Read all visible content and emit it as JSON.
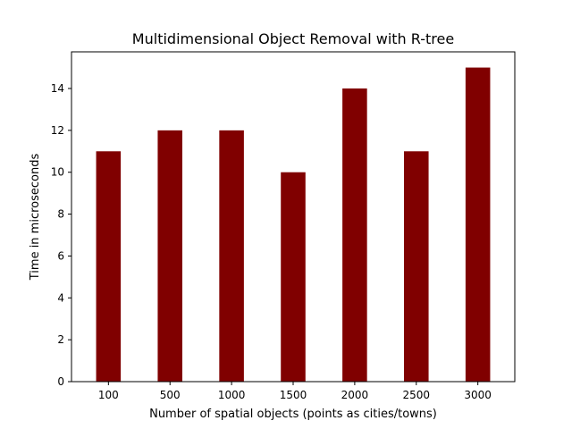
{
  "chart_data": {
    "type": "bar",
    "title": "Multidimensional Object Removal with R-tree",
    "xlabel": "Number of spatial objects (points as cities/towns)",
    "ylabel": "Time in microseconds",
    "categories": [
      "100",
      "500",
      "1000",
      "1500",
      "2000",
      "2500",
      "3000"
    ],
    "values": [
      11,
      12,
      12,
      10,
      14,
      11,
      15
    ],
    "ylim": [
      0,
      15.75
    ],
    "yticks": [
      0,
      2,
      4,
      6,
      8,
      10,
      12,
      14
    ],
    "bar_color": "#800000",
    "grid": false,
    "legend": "none"
  }
}
